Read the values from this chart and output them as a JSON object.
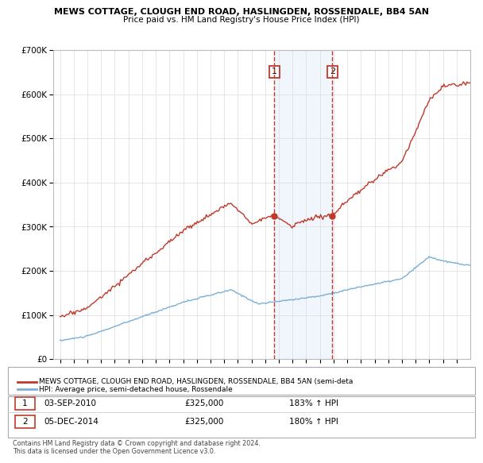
{
  "title1": "MEWS COTTAGE, CLOUGH END ROAD, HASLINGDEN, ROSSENDALE, BB4 5AN",
  "title2": "Price paid vs. HM Land Registry's House Price Index (HPI)",
  "legend_label1": "MEWS COTTAGE, CLOUGH END ROAD, HASLINGDEN, ROSSENDALE, BB4 5AN (semi-deta",
  "legend_label2": "HPI: Average price, semi-detached house, Rossendale",
  "annotation1_date": "03-SEP-2010",
  "annotation1_price": "£325,000",
  "annotation1_hpi": "183% ↑ HPI",
  "annotation2_date": "05-DEC-2014",
  "annotation2_price": "£325,000",
  "annotation2_hpi": "180% ↑ HPI",
  "ylim": [
    0,
    700000
  ],
  "background_color": "#ffffff",
  "plot_bg_color": "#ffffff",
  "grid_color": "#e0e0e0",
  "hpi_line_color": "#7bafd4",
  "price_line_color": "#c0392b",
  "annotation_line_color": "#c0392b",
  "shade_color": "#d6e8f7",
  "marker_color": "#c0392b",
  "footnote": "Contains HM Land Registry data © Crown copyright and database right 2024.\nThis data is licensed under the Open Government Licence v3.0."
}
